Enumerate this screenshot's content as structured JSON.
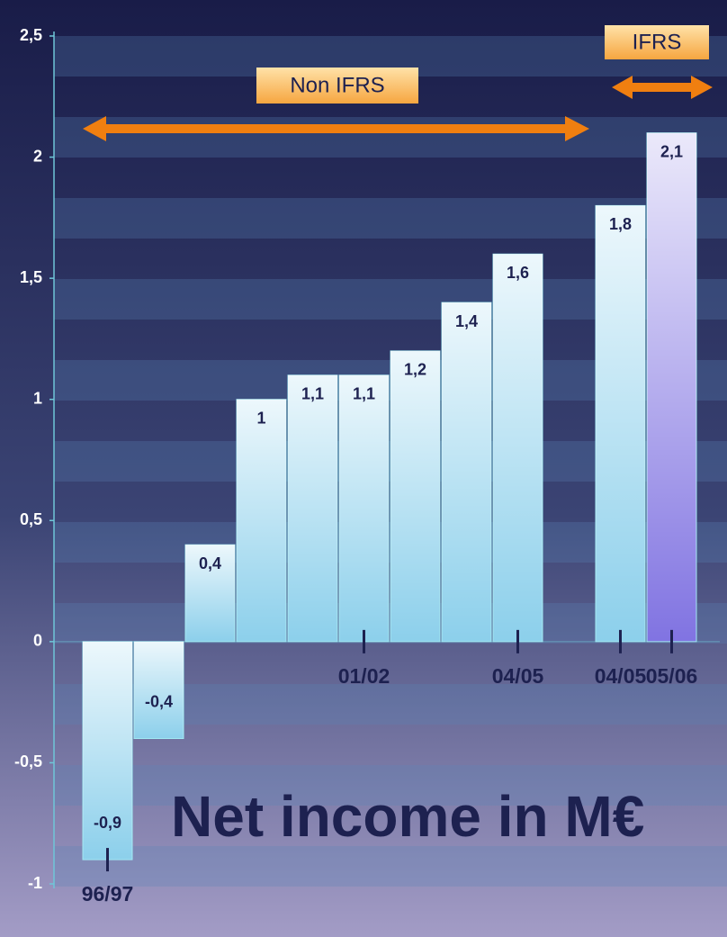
{
  "chart_data": {
    "type": "bar",
    "title": "Net income in M€",
    "categories": [
      "96/97",
      null,
      null,
      null,
      null,
      "01/02",
      null,
      null,
      "04/05",
      null,
      "04/05",
      "05/06"
    ],
    "values": [
      -0.9,
      -0.4,
      0.4,
      1,
      1.1,
      1.1,
      1.2,
      1.4,
      1.6,
      null,
      1.8,
      2.1
    ],
    "value_labels": [
      "-0,9",
      "-0,4",
      "0,4",
      "1",
      "1,1",
      "1,1",
      "1,2",
      "1,4",
      "1,6",
      null,
      "1,8",
      "2,1"
    ],
    "colors": [
      "#86cdea",
      "#86cdea",
      "#86cdea",
      "#86cdea",
      "#86cdea",
      "#86cdea",
      "#86cdea",
      "#86cdea",
      "#86cdea",
      null,
      "#86cdea",
      "#7a6ce0"
    ],
    "ylim": [
      -1,
      2.5
    ],
    "yticks": [
      {
        "value": -1,
        "label": "-1"
      },
      {
        "value": -0.5,
        "label": "-0,5"
      },
      {
        "value": 0,
        "label": "0"
      },
      {
        "value": 0.5,
        "label": "0,5"
      },
      {
        "value": 1,
        "label": "1"
      },
      {
        "value": 1.5,
        "label": "1,5"
      },
      {
        "value": 2,
        "label": "2"
      },
      {
        "value": 2.5,
        "label": "2,5"
      }
    ],
    "annotations": [
      {
        "text": "Non IFRS"
      },
      {
        "text": "IFRS"
      }
    ]
  }
}
